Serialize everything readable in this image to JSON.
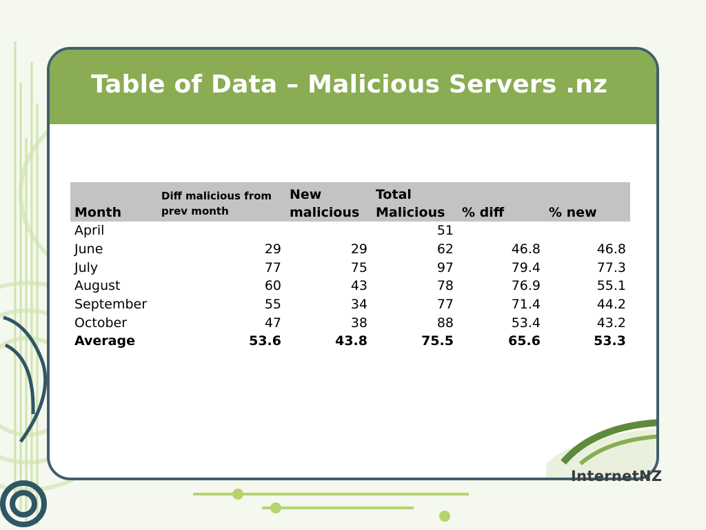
{
  "slide": {
    "title": "Table of Data – Malicious Servers .nz"
  },
  "table": {
    "headers": {
      "month": "Month",
      "diff": "Diff malicious from prev month",
      "new": "New malicious",
      "total": "Total Malicious",
      "pct_diff": "% diff",
      "pct_new": "% new"
    },
    "rows": [
      {
        "month": "April",
        "diff": "",
        "new": "",
        "total": "51",
        "pct_diff": "",
        "pct_new": ""
      },
      {
        "month": "June",
        "diff": "29",
        "new": "29",
        "total": "62",
        "pct_diff": "46.8",
        "pct_new": "46.8"
      },
      {
        "month": "July",
        "diff": "77",
        "new": "75",
        "total": "97",
        "pct_diff": "79.4",
        "pct_new": "77.3"
      },
      {
        "month": "August",
        "diff": "60",
        "new": "43",
        "total": "78",
        "pct_diff": "76.9",
        "pct_new": "55.1"
      },
      {
        "month": "September",
        "diff": "55",
        "new": "34",
        "total": "77",
        "pct_diff": "71.4",
        "pct_new": "44.2"
      },
      {
        "month": "October",
        "diff": "47",
        "new": "38",
        "total": "88",
        "pct_diff": "53.4",
        "pct_new": "43.2"
      }
    ],
    "average": {
      "month": "Average",
      "diff": "53.6",
      "new": "43.8",
      "total": "75.5",
      "pct_diff": "65.6",
      "pct_new": "53.3"
    }
  },
  "logo": {
    "text": "InternetNZ"
  },
  "colors": {
    "title_bar": "#8aac53",
    "frame_border": "#3f5f6c",
    "header_row": "#c3c3c3"
  }
}
